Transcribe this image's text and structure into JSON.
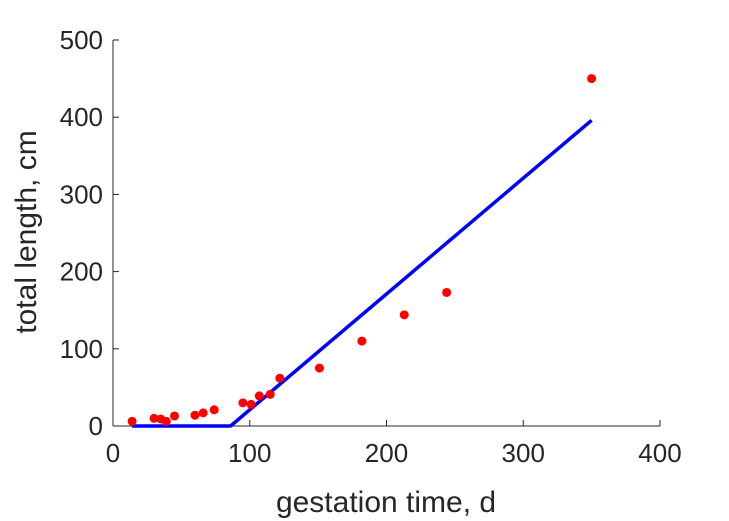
{
  "chart_data": {
    "type": "scatter",
    "xlabel": "gestation time, d",
    "ylabel": "total length, cm",
    "xlim": [
      0,
      400
    ],
    "ylim": [
      0,
      500
    ],
    "xticks": [
      0,
      100,
      200,
      300,
      400
    ],
    "yticks": [
      0,
      100,
      200,
      300,
      400,
      500
    ],
    "xtick_labels": [
      "0",
      "100",
      "200",
      "300",
      "400"
    ],
    "ytick_labels": [
      "0",
      "100",
      "200",
      "300",
      "400",
      "500"
    ],
    "grid": false,
    "series": [
      {
        "kind": "scatter",
        "color": "#ff0000",
        "points": [
          [
            14,
            6
          ],
          [
            30,
            10
          ],
          [
            35,
            9
          ],
          [
            39,
            6
          ],
          [
            45,
            13
          ],
          [
            60,
            14
          ],
          [
            66,
            17
          ],
          [
            74,
            21
          ],
          [
            95,
            30
          ],
          [
            101,
            28
          ],
          [
            107,
            39
          ],
          [
            115,
            41
          ],
          [
            122,
            62
          ],
          [
            151,
            75
          ],
          [
            182,
            110
          ],
          [
            213,
            144
          ],
          [
            244,
            173
          ],
          [
            350,
            450
          ]
        ]
      },
      {
        "kind": "line",
        "color": "#0000ff",
        "points": [
          [
            14,
            0
          ],
          [
            86,
            0
          ],
          [
            350,
            396
          ]
        ]
      }
    ]
  }
}
